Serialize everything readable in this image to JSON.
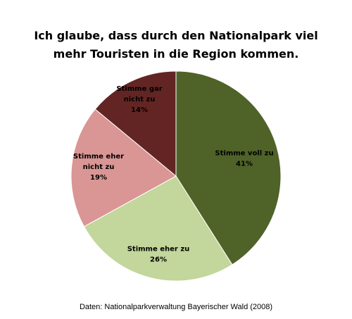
{
  "chart_data": {
    "type": "pie",
    "title": [
      "Ich glaube, dass durch den Nationalpark  viel",
      "mehr Touristen  in die Region kommen."
    ],
    "slices": [
      {
        "name": "Stimme voll zu",
        "value": 41,
        "label_lines": [
          "Stimme voll zu",
          "41%"
        ],
        "color": "#4f6228"
      },
      {
        "name": "Stimme eher zu",
        "value": 26,
        "label_lines": [
          "Stimme eher zu",
          "26%"
        ],
        "color": "#c3d69b"
      },
      {
        "name": "Stimme eher nicht zu",
        "value": 19,
        "label_lines": [
          "Stimme eher",
          "nicht zu",
          "19%"
        ],
        "color": "#d99694"
      },
      {
        "name": "Stimme gar nicht zu",
        "value": 14,
        "label_lines": [
          "Stimme gar",
          "nicht zu",
          "14%"
        ],
        "color": "#632523"
      }
    ],
    "start": "top",
    "direction": "clockwise"
  },
  "source": "Daten: Nationalparkverwaltung Bayerischer Wald (2008)"
}
